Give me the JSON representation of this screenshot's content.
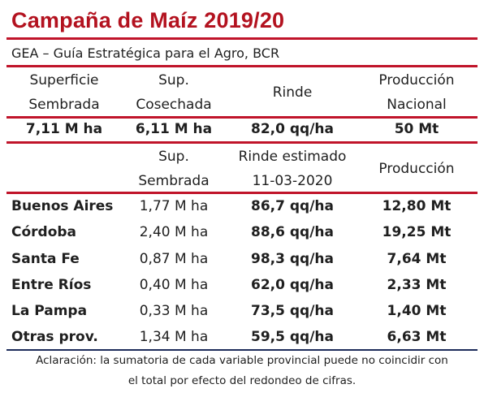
{
  "header": {
    "title": "Campaña de Maíz 2019/20",
    "subtitle": "GEA – Guía Estratégica para el Agro, BCR"
  },
  "national": {
    "columns": [
      [
        "Superficie",
        "Sembrada"
      ],
      [
        "Sup.",
        "Cosechada"
      ],
      [
        "Rinde"
      ],
      [
        "Producción",
        "Nacional"
      ]
    ],
    "values": [
      "7,11 M ha",
      "6,11 M ha",
      "82,0 qq/ha",
      "50 Mt"
    ]
  },
  "provincial": {
    "columns": [
      [
        "Sup.",
        "Sembrada"
      ],
      [
        "Rinde estimado",
        "11-03-2020"
      ],
      [
        "Producción"
      ]
    ],
    "rows": [
      {
        "name": "Buenos Aires",
        "area": "1,77 M ha",
        "yield": "86,7 qq/ha",
        "production": "12,80 Mt"
      },
      {
        "name": "Córdoba",
        "area": "2,40 M ha",
        "yield": "88,6 qq/ha",
        "production": "19,25 Mt"
      },
      {
        "name": "Santa Fe",
        "area": "0,87 M ha",
        "yield": "98,3 qq/ha",
        "production": "7,64 Mt"
      },
      {
        "name": "Entre Ríos",
        "area": "0,40 M ha",
        "yield": "62,0 qq/ha",
        "production": "2,33 Mt"
      },
      {
        "name": "La Pampa",
        "area": "0,33 M ha",
        "yield": "73,5 qq/ha",
        "production": "1,40 Mt"
      },
      {
        "name": "Otras prov.",
        "area": "1,34 M ha",
        "yield": "59,5 qq/ha",
        "production": "6,63 Mt"
      }
    ]
  },
  "footnote": {
    "line1": "Aclaración: la sumatoria de cada variable provincial puede no coincidir con",
    "line2": "el total por efecto del redondeo de cifras."
  }
}
